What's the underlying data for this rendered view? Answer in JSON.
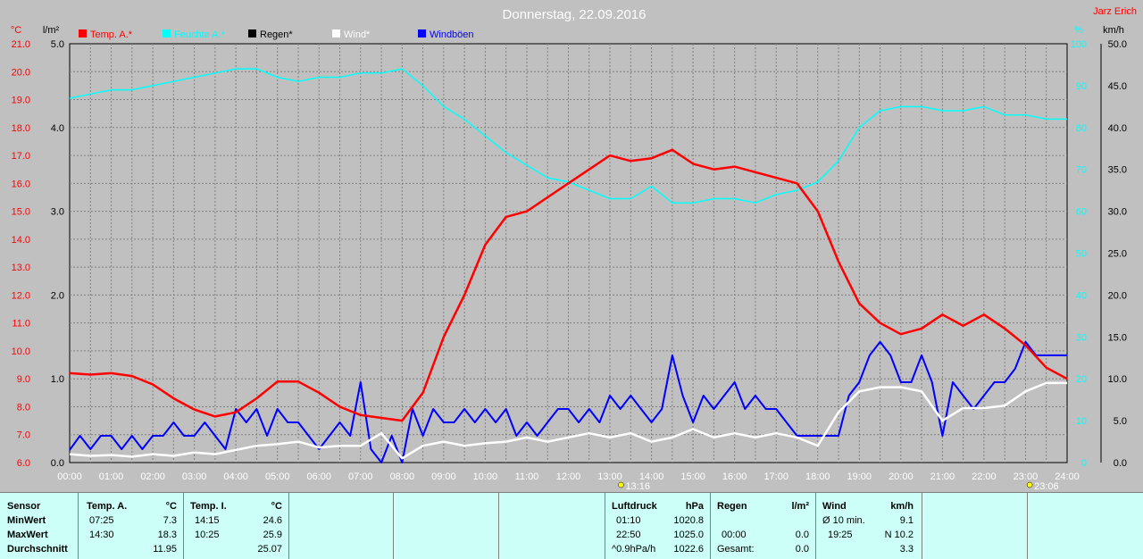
{
  "chart_data": {
    "type": "line",
    "title": "Donnerstag, 22.09.2016",
    "author": "Jarz Erich",
    "x_ticks": [
      "00:00",
      "01:00",
      "02:00",
      "03:00",
      "04:00",
      "05:00",
      "06:00",
      "07:00",
      "08:00",
      "09:00",
      "10:00",
      "11:00",
      "12:00",
      "13:00",
      "14:00",
      "15:00",
      "16:00",
      "17:00",
      "18:00",
      "19:00",
      "20:00",
      "21:00",
      "22:00",
      "23:00",
      "24:00"
    ],
    "axes": {
      "temp": {
        "unit": "°C",
        "min": 6.0,
        "max": 21.0,
        "ticks": [
          "21.0",
          "20.0",
          "19.0",
          "18.0",
          "17.0",
          "16.0",
          "15.0",
          "14.0",
          "13.0",
          "12.0",
          "11.0",
          "10.0",
          "9.0",
          "8.0",
          "7.0",
          "6.0"
        ]
      },
      "rain": {
        "unit": "l/m²",
        "min": 0,
        "max": 5.0,
        "ticks": [
          "5.0",
          "4.0",
          "3.0",
          "2.0",
          "1.0",
          "0.0"
        ]
      },
      "humidity": {
        "unit": "%",
        "min": 0,
        "max": 100,
        "ticks": [
          "100",
          "90",
          "80",
          "70",
          "60",
          "50",
          "40",
          "30",
          "20",
          "10",
          "0"
        ]
      },
      "wind": {
        "unit": "km/h",
        "min": 0,
        "max": 50,
        "ticks": [
          "50.0",
          "45.0",
          "40.0",
          "35.0",
          "30.0",
          "25.0",
          "20.0",
          "15.0",
          "10.0",
          "5.0",
          "0.0"
        ]
      }
    },
    "legend": [
      {
        "label": "Temp. A.*",
        "color": "#ff0000"
      },
      {
        "label": "Feuchte A.*",
        "color": "#00ffff"
      },
      {
        "label": "Regen*",
        "color": "#000000"
      },
      {
        "label": "Wind*",
        "color": "#ffffff"
      },
      {
        "label": "Windböen",
        "color": "#0000ff"
      }
    ],
    "markers": [
      {
        "label": "13:16",
        "color": "#ffff00"
      },
      {
        "label": "23:06",
        "color": "#ffff00"
      }
    ],
    "series": [
      {
        "name": "Temp. A.*",
        "color": "#ff0000",
        "axis": "temp",
        "x": [
          0,
          0.5,
          1,
          1.5,
          2,
          2.5,
          3,
          3.5,
          4,
          4.5,
          5,
          5.5,
          6,
          6.5,
          7,
          7.5,
          8,
          8.5,
          9,
          9.5,
          10,
          10.5,
          11,
          11.5,
          12,
          12.5,
          13,
          13.5,
          14,
          14.5,
          15,
          15.5,
          16,
          16.5,
          17,
          17.5,
          18,
          18.5,
          19,
          19.5,
          20,
          20.5,
          21,
          21.5,
          22,
          22.5,
          23,
          23.5,
          24
        ],
        "values": [
          9.2,
          9.15,
          9.2,
          9.1,
          8.8,
          8.3,
          7.9,
          7.65,
          7.8,
          8.3,
          8.9,
          8.9,
          8.5,
          8.0,
          7.7,
          7.6,
          7.5,
          8.5,
          10.5,
          12.0,
          13.8,
          14.8,
          15.0,
          15.5,
          16.0,
          16.5,
          17.0,
          16.8,
          16.9,
          17.2,
          16.7,
          16.5,
          16.6,
          16.4,
          16.2,
          16.0,
          15.0,
          13.2,
          11.7,
          11.0,
          10.6,
          10.8,
          11.3,
          10.9,
          11.3,
          10.8,
          10.2,
          9.4,
          9.0
        ]
      },
      {
        "name": "Feuchte A.*",
        "color": "#00ffff",
        "axis": "humidity",
        "x": [
          0,
          0.5,
          1,
          1.5,
          2,
          2.5,
          3,
          3.5,
          4,
          4.5,
          5,
          5.5,
          6,
          6.5,
          7,
          7.5,
          8,
          8.5,
          9,
          9.5,
          10,
          10.5,
          11,
          11.5,
          12,
          12.5,
          13,
          13.5,
          14,
          14.5,
          15,
          15.5,
          16,
          16.5,
          17,
          17.5,
          18,
          18.5,
          19,
          19.5,
          20,
          20.5,
          21,
          21.5,
          22,
          22.5,
          23,
          23.5,
          24
        ],
        "values": [
          87,
          88,
          89,
          89,
          90,
          91,
          92,
          93,
          94,
          94,
          92,
          91,
          92,
          92,
          93,
          93,
          94,
          90,
          85,
          82,
          78,
          74,
          71,
          68,
          67,
          65,
          63,
          63,
          66,
          62,
          62,
          63,
          63,
          62,
          64,
          65,
          67,
          72,
          80,
          84,
          85,
          85,
          84,
          84,
          85,
          83,
          83,
          82,
          82
        ]
      },
      {
        "name": "Wind*",
        "color": "#ffffff",
        "axis": "wind",
        "x": [
          0,
          0.5,
          1,
          1.5,
          2,
          2.5,
          3,
          3.5,
          4,
          4.5,
          5,
          5.5,
          6,
          6.5,
          7,
          7.5,
          8,
          8.5,
          9,
          9.5,
          10,
          10.5,
          11,
          11.5,
          12,
          12.5,
          13,
          13.5,
          14,
          14.5,
          15,
          15.5,
          16,
          16.5,
          17,
          17.5,
          18,
          18.5,
          19,
          19.5,
          20,
          20.5,
          21,
          21.5,
          22,
          22.5,
          23,
          23.5,
          24
        ],
        "values": [
          1.0,
          0.8,
          0.9,
          0.7,
          1.0,
          0.8,
          1.2,
          1.0,
          1.5,
          2.0,
          2.2,
          2.5,
          1.8,
          2.0,
          2.0,
          3.5,
          0.5,
          2.0,
          2.5,
          2.0,
          2.3,
          2.5,
          3.0,
          2.5,
          3.0,
          3.5,
          3.0,
          3.5,
          2.5,
          3.0,
          4.0,
          3.0,
          3.5,
          3.0,
          3.5,
          3.0,
          2.0,
          6.0,
          8.5,
          9.0,
          9.0,
          8.5,
          5.0,
          6.5,
          6.5,
          6.8,
          8.5,
          9.5,
          9.5
        ]
      },
      {
        "name": "Windböen",
        "color": "#0000ff",
        "axis": "wind",
        "x": [
          0,
          0.25,
          0.5,
          0.75,
          1,
          1.25,
          1.5,
          1.75,
          2,
          2.25,
          2.5,
          2.75,
          3,
          3.25,
          3.5,
          3.75,
          4,
          4.25,
          4.5,
          4.75,
          5,
          5.25,
          5.5,
          5.75,
          6,
          6.25,
          6.5,
          6.75,
          7,
          7.25,
          7.5,
          7.75,
          8,
          8.25,
          8.5,
          8.75,
          9,
          9.25,
          9.5,
          9.75,
          10,
          10.25,
          10.5,
          10.75,
          11,
          11.25,
          11.5,
          11.75,
          12,
          12.25,
          12.5,
          12.75,
          13,
          13.25,
          13.5,
          13.75,
          14,
          14.25,
          14.5,
          14.75,
          15,
          15.25,
          15.5,
          15.75,
          16,
          16.25,
          16.5,
          16.75,
          17,
          17.25,
          17.5,
          17.75,
          18,
          18.25,
          18.5,
          18.75,
          19,
          19.25,
          19.5,
          19.75,
          20,
          20.25,
          20.5,
          20.75,
          21,
          21.25,
          21.5,
          21.75,
          22,
          22.25,
          22.5,
          22.75,
          23,
          23.25,
          23.5,
          23.75,
          24
        ],
        "values": [
          1.5,
          3.2,
          1.6,
          3.2,
          3.2,
          1.6,
          3.2,
          1.6,
          3.2,
          3.2,
          4.8,
          3.2,
          3.2,
          4.8,
          3.2,
          1.6,
          6.4,
          4.8,
          6.4,
          3.2,
          6.4,
          4.8,
          4.8,
          3.2,
          1.6,
          3.2,
          4.8,
          3.2,
          9.6,
          1.6,
          0.0,
          3.2,
          0.0,
          6.4,
          3.2,
          6.4,
          4.8,
          4.8,
          6.4,
          4.8,
          6.4,
          4.8,
          6.4,
          3.2,
          4.8,
          3.2,
          4.8,
          6.4,
          6.4,
          4.8,
          6.4,
          4.8,
          8.0,
          6.4,
          8.0,
          6.4,
          4.8,
          6.4,
          12.8,
          8.0,
          4.8,
          8.0,
          6.4,
          8.0,
          9.6,
          6.4,
          8.0,
          6.4,
          6.4,
          4.8,
          3.2,
          3.2,
          3.2,
          3.2,
          3.2,
          8.0,
          9.6,
          12.8,
          14.4,
          12.8,
          9.6,
          9.6,
          12.8,
          9.6,
          3.2,
          9.6,
          8.0,
          6.4,
          8.0,
          9.6,
          9.6,
          11.2,
          14.4,
          12.8,
          12.8,
          12.8,
          12.8
        ]
      }
    ]
  },
  "stats": {
    "sensor": {
      "header": "Sensor",
      "rows": [
        "MinWert",
        "MaxWert",
        "Durchschnitt"
      ]
    },
    "temp_a": {
      "header": "Temp. A.",
      "unit": "°C",
      "rows": [
        {
          "time": "07:25",
          "value": "7.3"
        },
        {
          "time": "14:30",
          "value": "18.3"
        },
        {
          "time": "",
          "value": "11.95"
        }
      ]
    },
    "temp_i": {
      "header": "Temp. I.",
      "unit": "°C",
      "rows": [
        {
          "time": "14:15",
          "value": "24.6"
        },
        {
          "time": "10:25",
          "value": "25.9"
        },
        {
          "time": "",
          "value": "25.07"
        }
      ]
    },
    "pressure": {
      "header": "Luftdruck",
      "unit": "hPa",
      "rows": [
        {
          "time": "01:10",
          "value": "1020.8"
        },
        {
          "time": "22:50",
          "value": "1025.0"
        },
        {
          "time": "^0.9hPa/h",
          "value": "1022.6"
        }
      ]
    },
    "rain": {
      "header": "Regen",
      "unit": "l/m²",
      "rows": [
        {
          "time": "",
          "value": ""
        },
        {
          "time": "00:00",
          "value": "0.0"
        },
        {
          "time": "Gesamt:",
          "value": "0.0"
        }
      ]
    },
    "wind": {
      "header": "Wind",
      "unit": "km/h",
      "rows": [
        {
          "time": "Ø 10 min.",
          "value": "9.1"
        },
        {
          "time": "19:25",
          "value": "N 10.2"
        },
        {
          "time": "",
          "value": "3.3"
        }
      ]
    }
  }
}
